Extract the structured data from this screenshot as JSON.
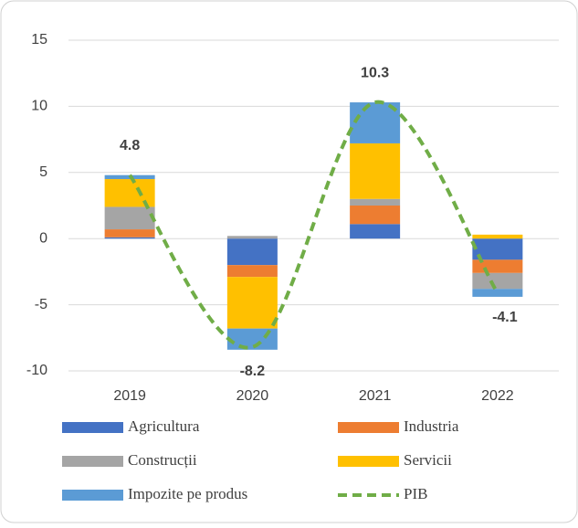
{
  "chart_data": {
    "type": "stacked_bar",
    "categories": [
      "2019",
      "2020",
      "2021",
      "2022"
    ],
    "series": [
      {
        "name": "Agricultura",
        "color": "#4472c4",
        "values": [
          0.1,
          -2.0,
          1.1,
          -1.6
        ]
      },
      {
        "name": "Industria",
        "color": "#ed7d31",
        "values": [
          0.6,
          -0.9,
          1.4,
          -1.0
        ]
      },
      {
        "name": "Construcții",
        "color": "#a5a5a5",
        "values": [
          1.7,
          0.2,
          0.5,
          -1.2
        ]
      },
      {
        "name": "Servicii",
        "color": "#ffc000",
        "values": [
          2.1,
          -3.9,
          4.2,
          0.3
        ]
      },
      {
        "name": "Impozite pe produs",
        "color": "#5b9bd5",
        "values": [
          0.3,
          -1.6,
          3.1,
          -0.6
        ]
      }
    ],
    "line": {
      "name": "PIB",
      "color": "#70ad47",
      "dashed": true,
      "values": [
        4.8,
        -8.2,
        10.3,
        -4.1
      ]
    },
    "ylim": [
      -10,
      15
    ],
    "yticks": [
      -10,
      -5,
      0,
      5,
      10,
      15
    ],
    "grid": true
  }
}
